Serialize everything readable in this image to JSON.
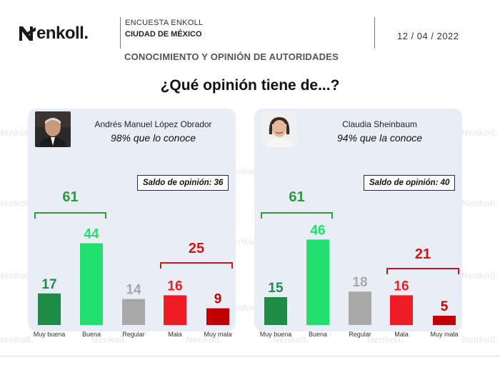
{
  "brand": {
    "logo_text": "enkoll."
  },
  "header": {
    "survey_name": "ENCUESTA ENKOLL",
    "city": "CIUDAD DE MÉXICO",
    "date": "12 / 04 / 2022",
    "subtitle": "CONOCIMIENTO Y OPINIÓN DE AUTORIDADES"
  },
  "question": "¿Qué opinión tiene de...?",
  "watermark_text": "enkoll.",
  "colors": {
    "muy_buena": "#1e8c48",
    "buena": "#22e06d",
    "regular": "#a8a8a8",
    "mala": "#ee1c24",
    "muy_mala": "#c00000",
    "positive_bracket": "#2c9a3e",
    "negative_bracket": "#d0161c",
    "panel_bg": "#e9eef6"
  },
  "chart_data": [
    {
      "type": "bar",
      "person": "Andrés Manuel López Obrador",
      "known": "98% que lo conoce",
      "saldo": "Saldo de opinión: 36",
      "categories": [
        "Muy buena",
        "Buena",
        "Regular",
        "Mala",
        "Muy mala"
      ],
      "values": [
        17,
        44,
        14,
        16,
        9
      ],
      "positive_total": 61,
      "negative_total": 25,
      "ylim": [
        0,
        50
      ]
    },
    {
      "type": "bar",
      "person": "Claudia Sheinbaum",
      "known": "94% que la conoce",
      "saldo": "Saldo de opinión: 40",
      "categories": [
        "Muy buena",
        "Buena",
        "Regular",
        "Mala",
        "Muy mala"
      ],
      "values": [
        15,
        46,
        18,
        16,
        5
      ],
      "positive_total": 61,
      "negative_total": 21,
      "ylim": [
        0,
        50
      ]
    }
  ]
}
